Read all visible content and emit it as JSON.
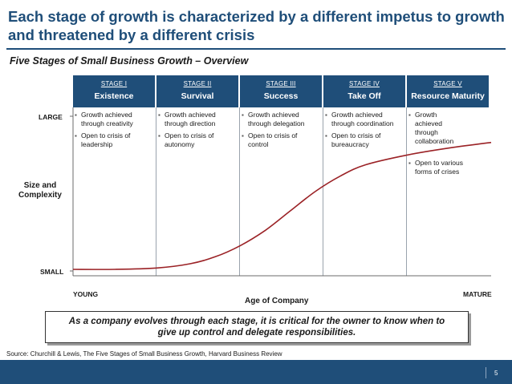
{
  "title": {
    "line1": "Each stage of growth is characterized by a different impetus to growth",
    "line2": "and threatened by a different crisis"
  },
  "subtitle": "Five Stages of Small Business Growth – Overview",
  "stages": [
    {
      "num": "STAGE I",
      "name": "Existence",
      "bullets": [
        "Growth achieved through creativity",
        "Open to crisis of leadership"
      ]
    },
    {
      "num": "STAGE II",
      "name": "Survival",
      "bullets": [
        "Growth achieved through direction",
        "Open to crisis of autonomy"
      ]
    },
    {
      "num": "STAGE III",
      "name": "Success",
      "bullets": [
        "Growth achieved through delegation",
        "Open to crisis of control"
      ]
    },
    {
      "num": "STAGE IV",
      "name": "Take Off",
      "bullets": [
        "Growth achieved through coordination",
        "Open to crisis of bureaucracy"
      ]
    },
    {
      "num": "STAGE V",
      "name": "Resource Maturity",
      "bullets": [
        "Growth achieved through collaboration",
        "Open to various forms of crises"
      ]
    }
  ],
  "axis": {
    "y_top": "LARGE",
    "y_bottom": "SMALL",
    "y_label_line1": "Size and",
    "y_label_line2": "Complexity",
    "x_left": "YOUNG",
    "x_right": "MATURE",
    "x_label": "Age of Company"
  },
  "chart_data": {
    "type": "line",
    "title": "Five Stages of Small Business Growth – Overview",
    "xlabel": "Age of Company",
    "ylabel": "Size and Complexity",
    "x_range": [
      0,
      1
    ],
    "y_range": [
      0,
      1
    ],
    "x": [
      0.0,
      0.1,
      0.2,
      0.28,
      0.34,
      0.4,
      0.46,
      0.52,
      0.58,
      0.64,
      0.7,
      0.8,
      0.9,
      1.0
    ],
    "y": [
      0.0,
      0.0,
      0.01,
      0.04,
      0.09,
      0.17,
      0.28,
      0.42,
      0.56,
      0.67,
      0.75,
      0.82,
      0.87,
      0.91
    ],
    "line_color": "#9b2226"
  },
  "callout": {
    "line1": "As a company evolves through each stage, it is critical for the owner to know when to",
    "line2": "give up control and delegate responsibilities."
  },
  "source": "Source:  Churchill & Lewis, The Five Stages of Small Business Growth, Harvard Business Review",
  "page_number": "5",
  "colors": {
    "header_bg": "#1f4e79",
    "title": "#1f4e79",
    "curve": "#9b2226"
  }
}
